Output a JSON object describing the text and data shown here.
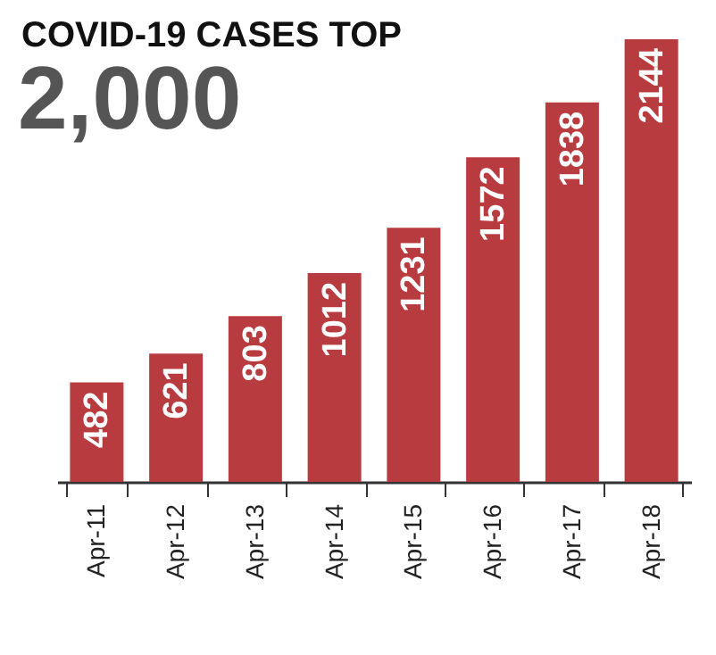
{
  "chart_data": {
    "type": "bar",
    "title": "COVID-19 CASES TOP",
    "subtitle": "2,000",
    "categories": [
      "Apr-11",
      "Apr-12",
      "Apr-13",
      "Apr-14",
      "Apr-15",
      "Apr-16",
      "Apr-17",
      "Apr-18"
    ],
    "values": [
      482,
      621,
      803,
      1012,
      1231,
      1572,
      1838,
      2144
    ],
    "color": "#b83c3f",
    "data_labels": true,
    "grid": false
  }
}
